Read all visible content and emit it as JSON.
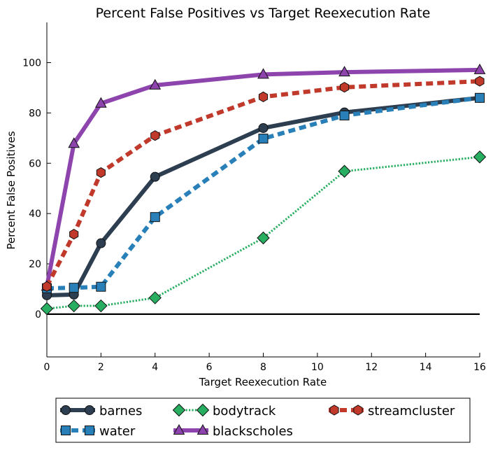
{
  "chart_data": {
    "type": "line",
    "title": "Percent False Positives vs Target Reexecution Rate",
    "xlabel": "Target Reexecution Rate",
    "ylabel": "Percent False Positives",
    "xlim": [
      0,
      16
    ],
    "ylim": [
      -17,
      116
    ],
    "xticks": [
      0,
      2,
      4,
      6,
      8,
      10,
      12,
      14,
      16
    ],
    "yticks": [
      0,
      20,
      40,
      60,
      80,
      100
    ],
    "grid": false,
    "reference_line_y": 0,
    "legend_placement": "bottom",
    "x": [
      0,
      1,
      2,
      4,
      8,
      11,
      16
    ],
    "series": [
      {
        "name": "barnes",
        "color": "#2c3e50",
        "marker": "circle",
        "line_style": "solid",
        "values": [
          7.5,
          7.8,
          28.2,
          54.6,
          74.0,
          80.2,
          86.0
        ]
      },
      {
        "name": "water",
        "color": "#2980b9",
        "marker": "square",
        "line_style": "dashed",
        "values": [
          10.3,
          10.5,
          10.9,
          38.6,
          69.8,
          79.0,
          86.0
        ]
      },
      {
        "name": "bodytrack",
        "color": "#27ae60",
        "marker": "diamond",
        "line_style": "dotted",
        "values": [
          2.2,
          3.3,
          3.3,
          6.5,
          30.3,
          56.8,
          62.5
        ]
      },
      {
        "name": "blackscholes",
        "color": "#8e44ad",
        "marker": "triangle",
        "line_style": "solid",
        "values": [
          11.0,
          67.8,
          83.8,
          91.0,
          95.3,
          96.2,
          97.1
        ]
      },
      {
        "name": "streamcluster",
        "color": "#c0392b",
        "marker": "hexagon",
        "line_style": "dashed",
        "values": [
          11.0,
          31.8,
          56.3,
          71.0,
          86.4,
          90.2,
          92.6
        ]
      }
    ]
  }
}
